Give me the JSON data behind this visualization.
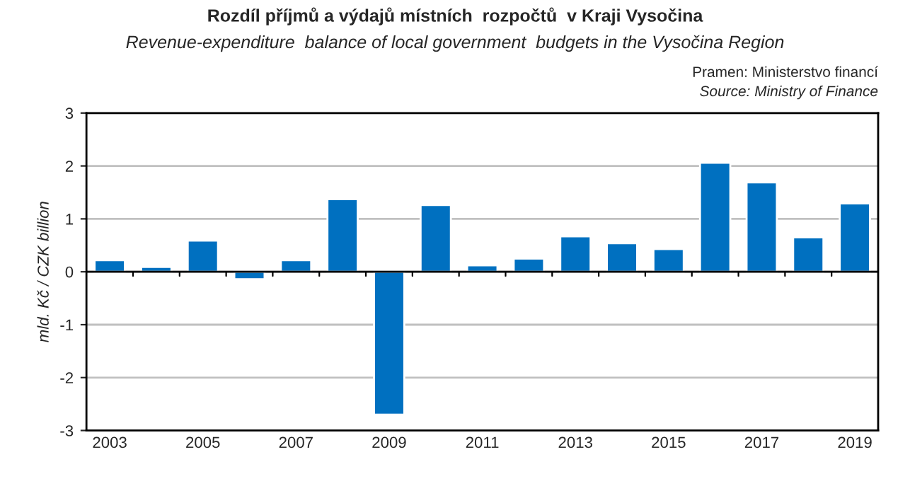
{
  "chart_data": {
    "type": "bar",
    "title": "Rozdíl příjmů a výdajů místních  rozpočtů  v Kraji Vysočina",
    "subtitle": "Revenue-expenditure  balance of local government  budgets in the Vysočina Region",
    "annotations": [
      "Pramen: Ministerstvo financí",
      "Source: Ministry of Finance"
    ],
    "ylabel": "mld. Kč / CZK billion",
    "categories": [
      "2003",
      null,
      "2005",
      null,
      "2007",
      null,
      "2009",
      null,
      "2011",
      null,
      "2013",
      null,
      "2015",
      null,
      "2017",
      null,
      "2019"
    ],
    "values": [
      0.22,
      0.09,
      0.59,
      -0.14,
      0.22,
      1.37,
      -2.7,
      1.26,
      0.12,
      0.25,
      0.67,
      0.54,
      0.43,
      2.06,
      1.69,
      0.65,
      1.29
    ],
    "color": "#0070c0",
    "ylim": [
      -3,
      3
    ],
    "yticks": [
      -3,
      -2,
      -1,
      0,
      1,
      2,
      3
    ],
    "grid": "y"
  }
}
